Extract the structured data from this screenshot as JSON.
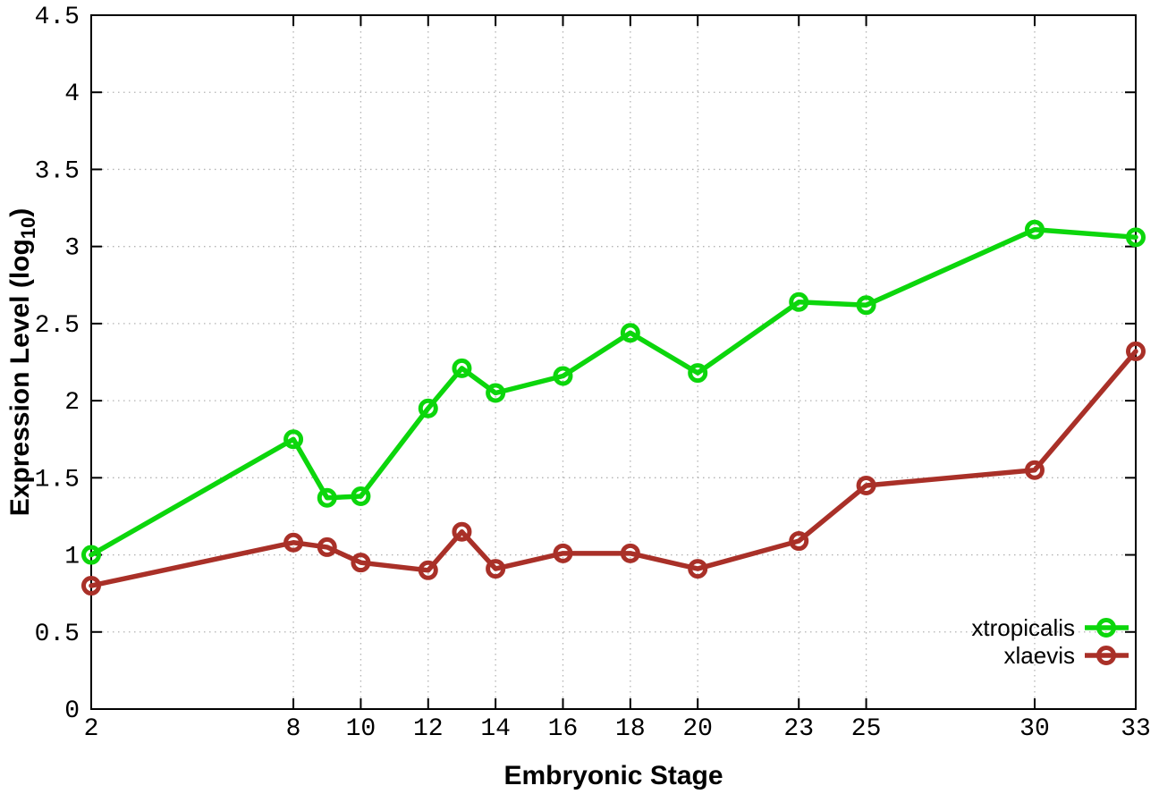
{
  "chart_data": {
    "type": "line",
    "title": "",
    "xlabel": "Embryonic Stage",
    "ylabel": "Expression Level (log10)",
    "ylabel_parts": {
      "pre": "Expression Level (log",
      "sub": "10",
      "post": ")"
    },
    "xlim": [
      2,
      33
    ],
    "ylim": [
      0,
      4.5
    ],
    "x_ticks": [
      2,
      8,
      10,
      12,
      14,
      16,
      18,
      20,
      23,
      25,
      30,
      33
    ],
    "y_ticks": [
      0,
      0.5,
      1,
      1.5,
      2,
      2.5,
      3,
      3.5,
      4,
      4.5
    ],
    "grid": true,
    "grid_style": "dotted",
    "legend_position": "bottom-right-inside",
    "background_color": "#ffffff",
    "axis_color": "#000000",
    "grid_color": "#b3b3b3",
    "marker": "open-circle",
    "x": [
      2,
      8,
      9,
      10,
      12,
      13,
      14,
      16,
      18,
      20,
      23,
      25,
      30,
      33
    ],
    "series": [
      {
        "name": "xtropicalis",
        "color": "#0cd60c",
        "values": [
          1.0,
          1.75,
          1.37,
          1.38,
          1.95,
          2.21,
          2.05,
          2.16,
          2.44,
          2.18,
          2.64,
          2.62,
          3.11,
          3.06
        ]
      },
      {
        "name": "xlaevis",
        "color": "#a93028",
        "values": [
          0.8,
          1.08,
          1.05,
          0.95,
          0.9,
          1.15,
          0.91,
          1.01,
          1.01,
          0.91,
          1.09,
          1.45,
          1.55,
          2.32
        ]
      }
    ]
  }
}
